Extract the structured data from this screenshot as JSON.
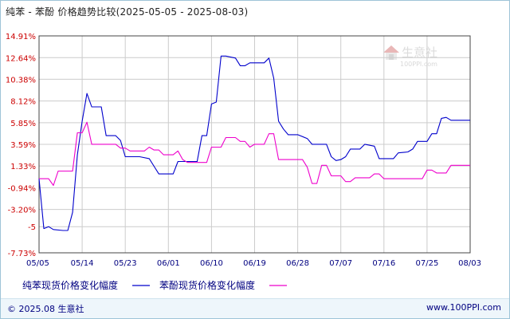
{
  "title": "纯苯 - 苯酚 价格趋势比较(2025-05-05 - 2025-08-03)",
  "footer": {
    "copyright": "© 2025.08 生意社",
    "url": "www.100PPI.com"
  },
  "watermark": {
    "name": "生意社",
    "url": "100PPI.com"
  },
  "colors": {
    "series1": "#0000cc",
    "series2": "#ee00cc",
    "axis_text": "#cc0000",
    "date_text": "#000080",
    "grid": "#cccccc"
  },
  "chart_data": {
    "type": "line",
    "ylim": [
      -7.73,
      14.91
    ],
    "yticks": [
      14.91,
      12.64,
      10.38,
      8.12,
      5.85,
      3.59,
      1.33,
      -0.94,
      -3.2,
      -5,
      -7.73
    ],
    "ytick_labels": [
      "14.91%",
      "12.64%",
      "10.38%",
      "8.12%",
      "5.85%",
      "3.59%",
      "1.33%",
      "-0.94%",
      "-3.20%",
      "-5",
      "-7.73%"
    ],
    "xlim": [
      "2025-05-05",
      "2025-08-03"
    ],
    "xticks": [
      "2025-05-05",
      "2025-05-14",
      "2025-05-23",
      "2025-06-01",
      "2025-06-10",
      "2025-06-19",
      "2025-06-28",
      "2025-07-07",
      "2025-07-16",
      "2025-07-25",
      "2025-08-03"
    ],
    "xtick_labels": [
      "05/05",
      "05/14",
      "05/23",
      "06/01",
      "06/10",
      "06/19",
      "06/28",
      "07/07",
      "07/16",
      "07/25",
      "08/03"
    ],
    "grid": true,
    "legend_position": "bottom",
    "series": [
      {
        "name": "纯苯现货价格变化幅度",
        "color": "#0000cc",
        "points": [
          [
            "2025-05-05",
            0.0
          ],
          [
            "2025-05-06",
            -5.2
          ],
          [
            "2025-05-07",
            -5.0
          ],
          [
            "2025-05-08",
            -5.3
          ],
          [
            "2025-05-10",
            -5.4
          ],
          [
            "2025-05-11",
            -5.4
          ],
          [
            "2025-05-12",
            -3.5
          ],
          [
            "2025-05-13",
            2.5
          ],
          [
            "2025-05-14",
            6.0
          ],
          [
            "2025-05-15",
            8.9
          ],
          [
            "2025-05-16",
            7.5
          ],
          [
            "2025-05-18",
            7.5
          ],
          [
            "2025-05-19",
            4.5
          ],
          [
            "2025-05-20",
            4.5
          ],
          [
            "2025-05-21",
            4.5
          ],
          [
            "2025-05-22",
            4.0
          ],
          [
            "2025-05-23",
            2.3
          ],
          [
            "2025-05-24",
            2.3
          ],
          [
            "2025-05-26",
            2.3
          ],
          [
            "2025-05-28",
            2.1
          ],
          [
            "2025-05-29",
            1.3
          ],
          [
            "2025-05-30",
            0.5
          ],
          [
            "2025-06-02",
            0.5
          ],
          [
            "2025-06-03",
            1.8
          ],
          [
            "2025-06-04",
            1.8
          ],
          [
            "2025-06-05",
            1.8
          ],
          [
            "2025-06-07",
            1.8
          ],
          [
            "2025-06-08",
            4.5
          ],
          [
            "2025-06-09",
            4.5
          ],
          [
            "2025-06-10",
            7.8
          ],
          [
            "2025-06-11",
            8.0
          ],
          [
            "2025-06-12",
            12.8
          ],
          [
            "2025-06-13",
            12.8
          ],
          [
            "2025-06-15",
            12.6
          ],
          [
            "2025-06-16",
            11.8
          ],
          [
            "2025-06-17",
            11.8
          ],
          [
            "2025-06-18",
            12.1
          ],
          [
            "2025-06-20",
            12.1
          ],
          [
            "2025-06-21",
            12.1
          ],
          [
            "2025-06-22",
            12.6
          ],
          [
            "2025-06-23",
            10.5
          ],
          [
            "2025-06-24",
            6.0
          ],
          [
            "2025-06-25",
            5.2
          ],
          [
            "2025-06-26",
            4.6
          ],
          [
            "2025-06-28",
            4.6
          ],
          [
            "2025-06-30",
            4.2
          ],
          [
            "2025-07-01",
            3.6
          ],
          [
            "2025-07-02",
            3.6
          ],
          [
            "2025-07-04",
            3.6
          ],
          [
            "2025-07-05",
            2.3
          ],
          [
            "2025-07-06",
            1.9
          ],
          [
            "2025-07-07",
            2.0
          ],
          [
            "2025-07-08",
            2.3
          ],
          [
            "2025-07-09",
            3.1
          ],
          [
            "2025-07-11",
            3.1
          ],
          [
            "2025-07-12",
            3.6
          ],
          [
            "2025-07-14",
            3.4
          ],
          [
            "2025-07-15",
            2.1
          ],
          [
            "2025-07-18",
            2.1
          ],
          [
            "2025-07-19",
            2.7
          ],
          [
            "2025-07-21",
            2.8
          ],
          [
            "2025-07-22",
            3.1
          ],
          [
            "2025-07-23",
            3.9
          ],
          [
            "2025-07-25",
            3.9
          ],
          [
            "2025-07-26",
            4.7
          ],
          [
            "2025-07-27",
            4.7
          ],
          [
            "2025-07-28",
            6.3
          ],
          [
            "2025-07-29",
            6.4
          ],
          [
            "2025-07-30",
            6.1
          ],
          [
            "2025-08-03",
            6.1
          ]
        ]
      },
      {
        "name": "苯酚现货价格变化幅度",
        "color": "#ee00cc",
        "points": [
          [
            "2025-05-05",
            0.0
          ],
          [
            "2025-05-06",
            0.0
          ],
          [
            "2025-05-07",
            0.0
          ],
          [
            "2025-05-08",
            -0.7
          ],
          [
            "2025-05-09",
            0.8
          ],
          [
            "2025-05-12",
            0.8
          ],
          [
            "2025-05-13",
            4.8
          ],
          [
            "2025-05-14",
            4.8
          ],
          [
            "2025-05-15",
            5.9
          ],
          [
            "2025-05-16",
            3.6
          ],
          [
            "2025-05-21",
            3.6
          ],
          [
            "2025-05-22",
            3.2
          ],
          [
            "2025-05-23",
            3.2
          ],
          [
            "2025-05-24",
            2.9
          ],
          [
            "2025-05-27",
            2.9
          ],
          [
            "2025-05-28",
            3.3
          ],
          [
            "2025-05-29",
            3.0
          ],
          [
            "2025-05-30",
            3.0
          ],
          [
            "2025-05-31",
            2.5
          ],
          [
            "2025-06-02",
            2.5
          ],
          [
            "2025-06-03",
            2.9
          ],
          [
            "2025-06-04",
            2.0
          ],
          [
            "2025-06-05",
            1.7
          ],
          [
            "2025-06-08",
            1.7
          ],
          [
            "2025-06-09",
            1.7
          ],
          [
            "2025-06-10",
            3.3
          ],
          [
            "2025-06-12",
            3.3
          ],
          [
            "2025-06-13",
            4.3
          ],
          [
            "2025-06-15",
            4.3
          ],
          [
            "2025-06-16",
            3.9
          ],
          [
            "2025-06-17",
            3.9
          ],
          [
            "2025-06-18",
            3.3
          ],
          [
            "2025-06-19",
            3.6
          ],
          [
            "2025-06-21",
            3.6
          ],
          [
            "2025-06-22",
            4.7
          ],
          [
            "2025-06-23",
            4.7
          ],
          [
            "2025-06-24",
            2.0
          ],
          [
            "2025-06-29",
            2.0
          ],
          [
            "2025-06-30",
            1.2
          ],
          [
            "2025-07-01",
            -0.5
          ],
          [
            "2025-07-02",
            -0.5
          ],
          [
            "2025-07-03",
            1.4
          ],
          [
            "2025-07-04",
            1.4
          ],
          [
            "2025-07-05",
            0.3
          ],
          [
            "2025-07-06",
            0.3
          ],
          [
            "2025-07-07",
            0.3
          ],
          [
            "2025-07-08",
            -0.3
          ],
          [
            "2025-07-09",
            -0.3
          ],
          [
            "2025-07-10",
            0.1
          ],
          [
            "2025-07-13",
            0.1
          ],
          [
            "2025-07-14",
            0.5
          ],
          [
            "2025-07-15",
            0.5
          ],
          [
            "2025-07-16",
            0.0
          ],
          [
            "2025-07-24",
            0.0
          ],
          [
            "2025-07-25",
            0.9
          ],
          [
            "2025-07-26",
            0.9
          ],
          [
            "2025-07-27",
            0.6
          ],
          [
            "2025-07-29",
            0.6
          ],
          [
            "2025-07-30",
            1.4
          ],
          [
            "2025-08-03",
            1.4
          ]
        ]
      }
    ]
  }
}
